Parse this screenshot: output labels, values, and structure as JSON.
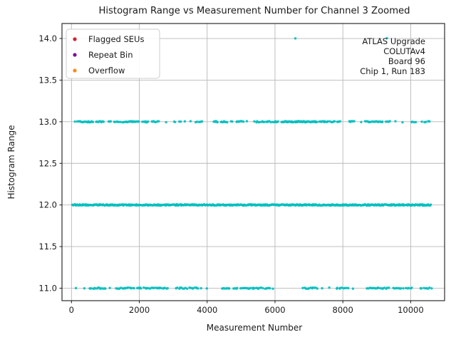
{
  "chart_data": {
    "type": "scatter",
    "title": "Histogram Range vs Measurement Number for Channel 3 Zoomed",
    "xlabel": "Measurement Number",
    "ylabel": "Histogram Range",
    "xlim": [
      -280,
      11000
    ],
    "ylim": [
      10.85,
      14.18
    ],
    "xticks": [
      0,
      2000,
      4000,
      6000,
      8000,
      10000
    ],
    "xticklabels": [
      "0",
      "2000",
      "4000",
      "6000",
      "8000",
      "10000"
    ],
    "yticks": [
      11.0,
      11.5,
      12.0,
      12.5,
      13.0,
      13.5,
      14.0
    ],
    "yticklabels": [
      "11.0",
      "11.5",
      "12.0",
      "12.5",
      "13.0",
      "13.5",
      "14.0"
    ],
    "grid": true,
    "grid_color": "#b8b8b8",
    "legend_position": "upper-left",
    "legend": [
      {
        "label": "Flagged SEUs",
        "color": "#d21f2e"
      },
      {
        "label": "Repeat Bin",
        "color": "#7a1196"
      },
      {
        "label": "Overflow",
        "color": "#f28c1c"
      }
    ],
    "annotation": {
      "lines": [
        "ATLAS Upgrade",
        "COLUTAv4",
        "Board 96",
        "Chip 1, Run 183"
      ]
    },
    "series": [
      {
        "name": "histogram-range-points",
        "color": "#00bfbf",
        "marker_radius_px": 1.7,
        "bands": [
          {
            "y": 14,
            "clusters": [
              [
                6600,
                6600,
                1
              ],
              [
                9300,
                9300,
                1
              ]
            ]
          },
          {
            "y": 13,
            "clusters": [
              [
                100,
                180,
                2
              ],
              [
                210,
                430,
                10
              ],
              [
                470,
                630,
                7
              ],
              [
                735,
                945,
                8
              ],
              [
                1100,
                1160,
                3
              ],
              [
                1260,
                1430,
                6
              ],
              [
                1510,
                1995,
                20
              ],
              [
                2100,
                2270,
                7
              ],
              [
                2370,
                2480,
                5
              ],
              [
                2540,
                2580,
                2
              ],
              [
                2780,
                2800,
                1
              ],
              [
                3030,
                3060,
                2
              ],
              [
                3190,
                3230,
                2
              ],
              [
                3330,
                3350,
                1
              ],
              [
                3500,
                3520,
                1
              ],
              [
                3675,
                3780,
                4
              ],
              [
                3830,
                3850,
                2
              ],
              [
                4200,
                4310,
                5
              ],
              [
                4400,
                4580,
                7
              ],
              [
                4710,
                4740,
                2
              ],
              [
                4870,
                5060,
                8
              ],
              [
                5160,
                5180,
                1
              ],
              [
                5400,
                5880,
                14
              ],
              [
                5940,
                6090,
                6
              ],
              [
                6195,
                7245,
                60
              ],
              [
                7310,
                7560,
                11
              ],
              [
                7620,
                7770,
                6
              ],
              [
                7830,
                7920,
                4
              ],
              [
                8190,
                8330,
                6
              ],
              [
                8530,
                8550,
                1
              ],
              [
                8670,
                9175,
                20
              ],
              [
                9280,
                9385,
                4
              ],
              [
                9540,
                9560,
                1
              ],
              [
                9750,
                9770,
                1
              ],
              [
                10020,
                10140,
                4
              ],
              [
                10320,
                10340,
                1
              ],
              [
                10420,
                10550,
                4
              ]
            ]
          },
          {
            "y": 12,
            "clusters": [
              [
                30,
                1555,
                90
              ],
              [
                1595,
                10600,
                520
              ]
            ]
          },
          {
            "y": 11,
            "clusters": [
              [
                120,
                140,
                1
              ],
              [
                370,
                390,
                1
              ],
              [
                525,
                1010,
                14
              ],
              [
                1120,
                1140,
                1
              ],
              [
                1320,
                1850,
                16
              ],
              [
                1930,
                2060,
                5
              ],
              [
                2140,
                2310,
                6
              ],
              [
                2370,
                2835,
                14
              ],
              [
                3090,
                3400,
                9
              ],
              [
                3465,
                3740,
                8
              ],
              [
                3810,
                3830,
                1
              ],
              [
                3980,
                4000,
                1
              ],
              [
                4450,
                4660,
                7
              ],
              [
                4790,
                4890,
                4
              ],
              [
                5000,
                5630,
                18
              ],
              [
                5710,
                5840,
                5
              ],
              [
                5930,
                5950,
                1
              ],
              [
                6825,
                7245,
                12
              ],
              [
                7380,
                7400,
                1
              ],
              [
                7590,
                7610,
                1
              ],
              [
                7810,
                8150,
                9
              ],
              [
                8290,
                8310,
                1
              ],
              [
                8715,
                9345,
                18
              ],
              [
                9490,
                9765,
                8
              ],
              [
                9870,
                10040,
                5
              ],
              [
                10290,
                10600,
                8
              ]
            ]
          }
        ]
      }
    ]
  }
}
